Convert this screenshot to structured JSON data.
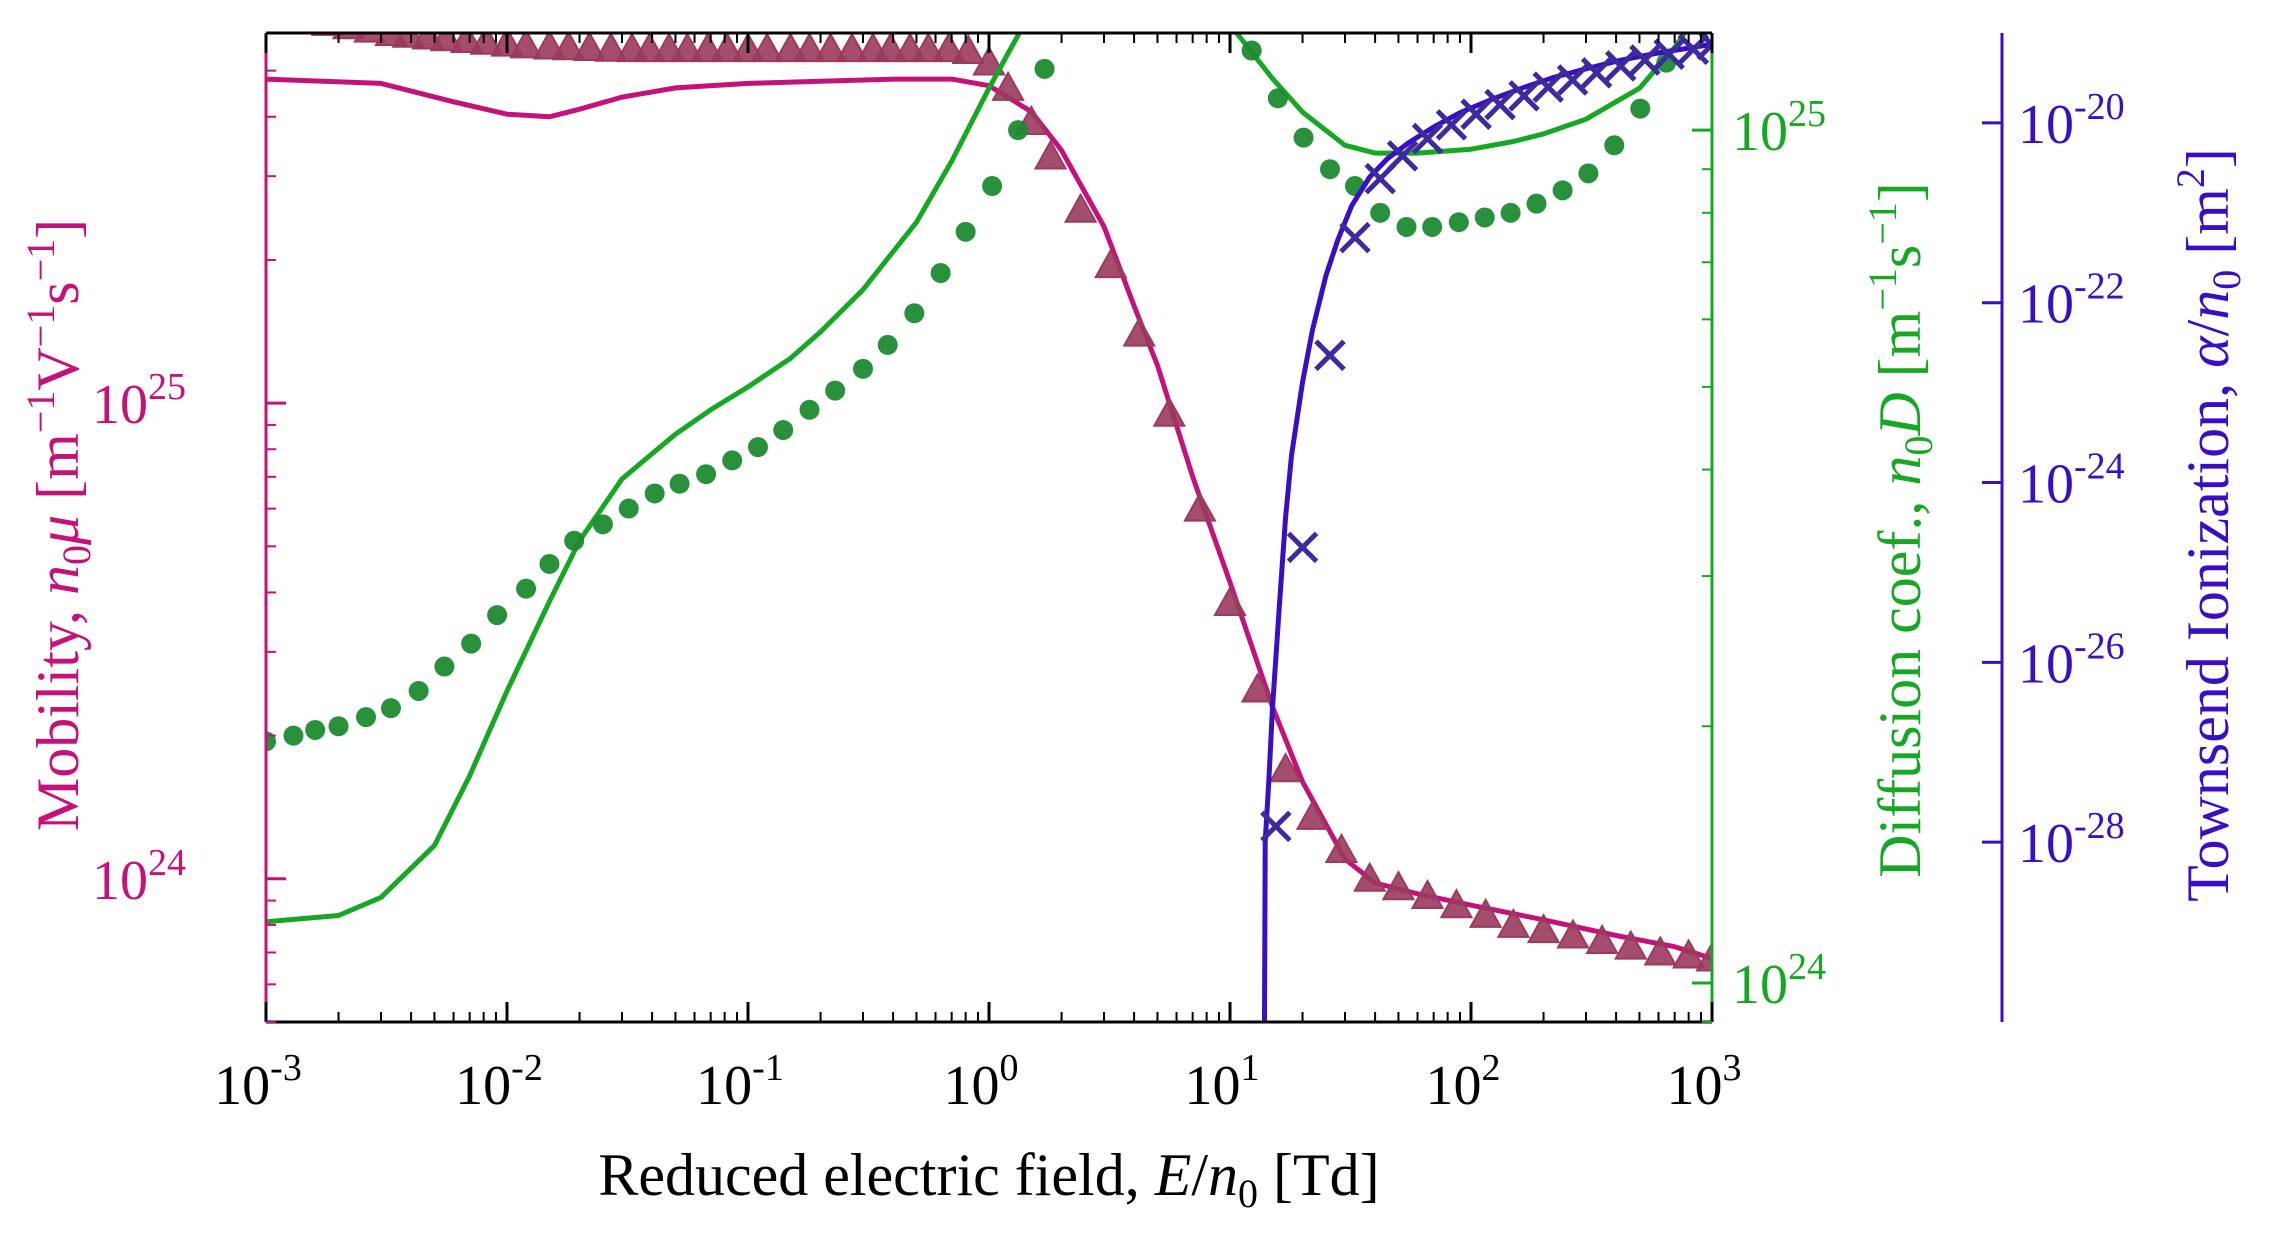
{
  "chart_data": {
    "type": "line",
    "x_scale": "log",
    "xlim": [
      0.001,
      1000
    ],
    "xlabel": {
      "pre": "Reduced electric field, ",
      "var": "E",
      "slash": "/",
      "n": "n",
      "sub": "0",
      "post": " [Td]"
    },
    "x_ticks": [
      {
        "base": "10",
        "exp": "-3",
        "value": 0.001
      },
      {
        "base": "10",
        "exp": "-2",
        "value": 0.01
      },
      {
        "base": "10",
        "exp": "-1",
        "value": 0.1
      },
      {
        "base": "10",
        "exp": "0",
        "value": 1
      },
      {
        "base": "10",
        "exp": "1",
        "value": 10
      },
      {
        "base": "10",
        "exp": "2",
        "value": 100
      },
      {
        "base": "10",
        "exp": "3",
        "value": 1000
      }
    ],
    "axes": {
      "mobility": {
        "side": "left",
        "color": "#c4127a",
        "scale": "log",
        "ylim": [
          5e+23,
          6e+25
        ],
        "label": {
          "pre": "Mobility, ",
          "n": "n",
          "sub": "0",
          "var": "μ",
          "post": " [m",
          "e1": "−1",
          "mid": "V",
          "e2": "−1",
          "mid2": "s",
          "e3": "−1",
          "close": "]"
        },
        "ticks": [
          {
            "base": "10",
            "exp": "24",
            "value": 1e+24
          },
          {
            "base": "10",
            "exp": "25",
            "value": 1e+25
          }
        ]
      },
      "diffusion": {
        "side": "right",
        "color": "#16a822",
        "scale": "log",
        "ylim": [
          9e+23,
          1.3e+25
        ],
        "label": {
          "pre": "Diffusion coef., ",
          "n": "n",
          "sub": "0",
          "var": "D",
          "post": " [m",
          "e1": "−1",
          "mid": "s",
          "e2": "−1",
          "close": "]"
        },
        "ticks": [
          {
            "base": "10",
            "exp": "24",
            "value": 1e+24
          },
          {
            "base": "10",
            "exp": "25",
            "value": 1e+25
          }
        ]
      },
      "townsend": {
        "side": "right-outer",
        "color": "#3a0ec4",
        "scale": "log",
        "ylim": [
          1e-30,
          1e-19
        ],
        "label": {
          "pre": "Townsend Ionization, ",
          "var": "α",
          "slash": "/",
          "n": "n",
          "sub": "0",
          "post": " [m",
          "e1": "2",
          "close": "]"
        },
        "ticks": [
          {
            "base": "10",
            "exp": "-20",
            "value": 1e-20
          },
          {
            "base": "10",
            "exp": "-22",
            "value": 1e-22
          },
          {
            "base": "10",
            "exp": "-24",
            "value": 1e-24
          },
          {
            "base": "10",
            "exp": "-26",
            "value": 1e-26
          },
          {
            "base": "10",
            "exp": "-28",
            "value": 1e-28
          }
        ]
      }
    },
    "series": [
      {
        "axis": "mobility",
        "kind": "line",
        "color": "#c4127a",
        "x": [
          0.001,
          0.003,
          0.006,
          0.01,
          0.015,
          0.02,
          0.03,
          0.05,
          0.1,
          0.2,
          0.4,
          0.7,
          1,
          1.5,
          2,
          3,
          4,
          5,
          7,
          10,
          15,
          20,
          30,
          40,
          60,
          100,
          200,
          400,
          700,
          1000
        ],
        "y": [
          4.8e+25,
          4.7e+25,
          4.3e+25,
          4.05e+25,
          4e+25,
          4.15e+25,
          4.4e+25,
          4.6e+25,
          4.7e+25,
          4.75e+25,
          4.8e+25,
          4.8e+25,
          4.65e+25,
          4.1e+25,
          3.4e+25,
          2.35e+25,
          1.6e+25,
          1.2e+25,
          7e+24,
          4.2e+24,
          2.3e+24,
          1.6e+24,
          1.1e+24,
          9.8e+23,
          9.3e+23,
          8.8e+23,
          8.2e+23,
          7.6e+23,
          7.2e+23,
          6.8e+23
        ]
      },
      {
        "axis": "mobility",
        "kind": "markers",
        "marker": "triangle",
        "color": "#9b3a5e",
        "x": [
          0.001,
          0.0012,
          0.0015,
          0.0018,
          0.0022,
          0.0027,
          0.0033,
          0.0039,
          0.0047,
          0.0056,
          0.0068,
          0.0082,
          0.01,
          0.012,
          0.015,
          0.018,
          0.022,
          0.027,
          0.033,
          0.039,
          0.047,
          0.056,
          0.068,
          0.082,
          0.1,
          0.12,
          0.15,
          0.18,
          0.22,
          0.27,
          0.33,
          0.39,
          0.47,
          0.56,
          0.68,
          0.82,
          1,
          1.2,
          1.5,
          1.8,
          2.4,
          3.2,
          4.2,
          5.6,
          7.5,
          10,
          13,
          17,
          22,
          29,
          38,
          50,
          66,
          87,
          115,
          150,
          200,
          265,
          350,
          460,
          610,
          800,
          1000
        ],
        "y": [
          6.6e+25,
          6.5e+25,
          6.4e+25,
          6.3e+25,
          6.2e+25,
          6.1e+25,
          6e+25,
          5.95e+25,
          5.9e+25,
          5.85e+25,
          5.8e+25,
          5.75e+25,
          5.7e+25,
          5.65e+25,
          5.62e+25,
          5.6e+25,
          5.58e+25,
          5.56e+25,
          5.55e+25,
          5.55e+25,
          5.55e+25,
          5.55e+25,
          5.55e+25,
          5.55e+25,
          5.55e+25,
          5.55e+25,
          5.55e+25,
          5.55e+25,
          5.55e+25,
          5.55e+25,
          5.55e+25,
          5.55e+25,
          5.55e+25,
          5.55e+25,
          5.55e+25,
          5.5e+25,
          5.2e+25,
          4.6e+25,
          3.9e+25,
          3.3e+25,
          2.55e+25,
          1.95e+25,
          1.4e+25,
          9.5e+24,
          6e+24,
          3.8e+24,
          2.5e+24,
          1.7e+24,
          1.35e+24,
          1.15e+24,
          1e+24,
          9.6e+23,
          9.2e+23,
          8.8e+23,
          8.4e+23,
          8e+23,
          7.8e+23,
          7.6e+23,
          7.4e+23,
          7.2e+23,
          7e+23,
          6.9e+23,
          6.8e+23
        ]
      },
      {
        "axis": "diffusion",
        "kind": "line",
        "color": "#16a822",
        "x": [
          0.001,
          0.002,
          0.003,
          0.005,
          0.007,
          0.01,
          0.015,
          0.02,
          0.03,
          0.05,
          0.07,
          0.1,
          0.15,
          0.2,
          0.3,
          0.5,
          0.7,
          1,
          1.5,
          2,
          3,
          4,
          5,
          7,
          10,
          15,
          20,
          30,
          40,
          60,
          100,
          150,
          200,
          300,
          500,
          700,
          1000
        ],
        "y": [
          1.18e+24,
          1.2e+24,
          1.26e+24,
          1.45e+24,
          1.75e+24,
          2.2e+24,
          2.8e+24,
          3.3e+24,
          3.9e+24,
          4.4e+24,
          4.7e+24,
          5e+24,
          5.4e+24,
          5.8e+24,
          6.5e+24,
          7.8e+24,
          9.2e+24,
          1.12e+25,
          1.38e+25,
          1.55e+25,
          1.7e+25,
          1.71e+25,
          1.65e+25,
          1.5e+25,
          1.33e+25,
          1.15e+25,
          1.05e+25,
          9.6e+24,
          9.4e+24,
          9.4e+24,
          9.5e+24,
          9.7e+24,
          9.9e+24,
          1.03e+25,
          1.12e+25,
          1.25e+25,
          1.45e+25
        ]
      },
      {
        "axis": "diffusion",
        "kind": "markers",
        "marker": "circle",
        "color": "#1e8a30",
        "x": [
          0.001,
          0.0013,
          0.0016,
          0.002,
          0.0026,
          0.0033,
          0.0043,
          0.0055,
          0.0071,
          0.0091,
          0.012,
          0.015,
          0.019,
          0.025,
          0.032,
          0.041,
          0.052,
          0.067,
          0.086,
          0.11,
          0.14,
          0.18,
          0.23,
          0.3,
          0.38,
          0.49,
          0.63,
          0.8,
          1.03,
          1.32,
          1.7,
          2.2,
          2.8,
          3.6,
          4.6,
          5.9,
          7.5,
          9.6,
          12.3,
          15.8,
          20.2,
          26,
          33,
          42,
          54,
          69,
          89,
          114,
          146,
          187,
          240,
          307,
          393,
          504,
          646,
          827,
          1000
        ],
        "y": [
          1.92e+24,
          1.95e+24,
          1.98e+24,
          2e+24,
          2.05e+24,
          2.1e+24,
          2.2e+24,
          2.35e+24,
          2.5e+24,
          2.7e+24,
          2.9e+24,
          3.1e+24,
          3.3e+24,
          3.45e+24,
          3.6e+24,
          3.75e+24,
          3.85e+24,
          3.95e+24,
          4.1e+24,
          4.25e+24,
          4.45e+24,
          4.7e+24,
          4.95e+24,
          5.25e+24,
          5.6e+24,
          6.1e+24,
          6.8e+24,
          7.6e+24,
          8.6e+24,
          1e+25,
          1.18e+25,
          1.38e+25,
          1.56e+25,
          1.68e+25,
          1.72e+25,
          1.68e+25,
          1.56e+25,
          1.4e+25,
          1.24e+25,
          1.09e+25,
          9.8e+24,
          9e+24,
          8.6e+24,
          8e+24,
          7.7e+24,
          7.7e+24,
          7.8e+24,
          7.9e+24,
          8e+24,
          8.2e+24,
          8.5e+24,
          8.9e+24,
          9.6e+24,
          1.06e+25,
          1.2e+25,
          1.38e+25,
          1.55e+25
        ]
      },
      {
        "axis": "townsend",
        "kind": "line",
        "color": "#3a0ec4",
        "x": [
          13.9,
          14,
          14.5,
          15,
          16,
          17,
          18,
          20,
          22,
          25,
          28,
          32,
          38,
          45,
          55,
          70,
          90,
          120,
          160,
          220,
          300,
          420,
          600,
          800,
          1000
        ],
        "y": [
          1e-30,
          1e-28,
          5e-28,
          3e-27,
          4e-26,
          4e-25,
          2e-24,
          1.3e-23,
          5e-23,
          2e-22,
          5e-22,
          1.2e-21,
          2.5e-21,
          4e-21,
          6e-21,
          9e-21,
          1.3e-20,
          1.8e-20,
          2.4e-20,
          3.2e-20,
          4e-20,
          5e-20,
          6e-20,
          6.8e-20,
          7.5e-20
        ]
      },
      {
        "axis": "townsend",
        "kind": "markers",
        "marker": "x",
        "color": "#3c2a9e",
        "x": [
          15.5,
          20,
          26,
          33,
          42,
          52,
          66,
          83,
          105,
          132,
          166,
          209,
          264,
          332,
          418,
          527,
          664,
          837,
          1000
        ],
        "y": [
          1.5e-28,
          1.9e-25,
          2.6e-23,
          5.3e-22,
          2.4e-21,
          4.3e-21,
          6.7e-21,
          9.5e-21,
          1.25e-20,
          1.6e-20,
          2e-20,
          2.5e-20,
          3e-20,
          3.6e-20,
          4.3e-20,
          5e-20,
          5.8e-20,
          6.6e-20,
          7.4e-20
        ]
      }
    ]
  }
}
